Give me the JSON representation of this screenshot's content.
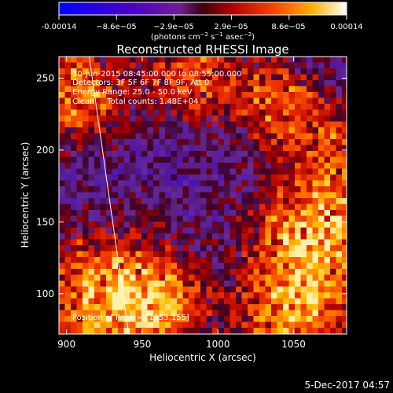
{
  "colorbar": {
    "ticks": [
      "-0.00014",
      "−8.6e−05",
      "−2.9e−05",
      "2.9e−05",
      "8.6e−05",
      "0.00014"
    ],
    "unit_prefix": "(photons cm",
    "unit_exp1": "−2",
    "unit_mid": " s",
    "unit_exp2": "−1",
    "unit_mid2": " asec",
    "unit_exp3": "−2",
    "unit_suffix": ")",
    "range": [
      -0.00014,
      0.00014
    ]
  },
  "chart_data": {
    "type": "heatmap",
    "title": "Reconstructed RHESSI Image",
    "xlabel": "Heliocentric X (arcsec)",
    "ylabel": "Heliocentric Y (arcsec)",
    "xlim": [
      895,
      1085
    ],
    "ylim": [
      72,
      265
    ],
    "xticks": [
      900,
      950,
      1000,
      1050
    ],
    "yticks": [
      100,
      150,
      200,
      250
    ],
    "peak": {
      "x": 1053,
      "y": 155
    },
    "limb_line": [
      [
        915,
        265
      ],
      [
        941,
        72
      ]
    ],
    "annotations": [
      "30-Jun-2015 08:45:00.000 to 08:55:00.000",
      "Detectors: 3F 5F 6F 7F 8F 9F, Att 0",
      "Energy Range: 25.0 - 50.0 keV",
      "Clean     Total counts: 1.48E+04"
    ],
    "peak_label": "Position of Peak = [1053,155]"
  },
  "timestamp": "5-Dec-2017 04:57"
}
